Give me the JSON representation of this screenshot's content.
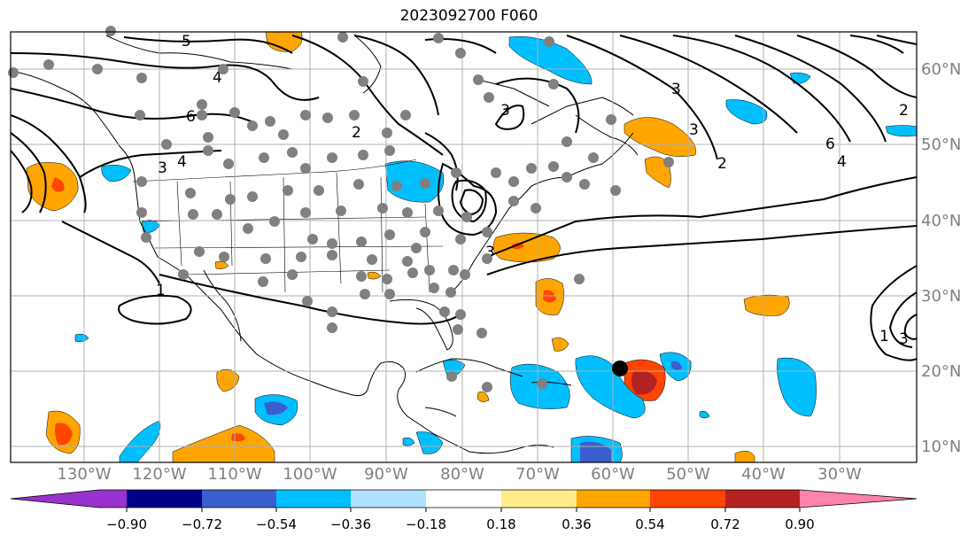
{
  "title": "2023092700 F060",
  "lat_labels": [
    "60°N",
    "50°N",
    "40°N",
    "30°N",
    "20°N",
    "10°N"
  ],
  "lon_labels": [
    "130°W",
    "120°W",
    "110°W",
    "100°W",
    "90°W",
    "80°W",
    "70°W",
    "60°W",
    "50°W",
    "40°W",
    "30°W"
  ],
  "contour_labels": [
    "5",
    "4",
    "6",
    "2",
    "3",
    "3",
    "4",
    "3",
    "1",
    "2",
    "3",
    "6",
    "4",
    "3",
    "2",
    "1",
    "3"
  ],
  "colorbar": {
    "ticks": [
      "−0.90",
      "−0.72",
      "−0.54",
      "−0.36",
      "−0.18",
      "0.18",
      "0.36",
      "0.54",
      "0.72",
      "0.90"
    ],
    "colors": [
      "#9932cc",
      "#00008b",
      "#3a5fcd",
      "#00bfff",
      "#b0e2ff",
      "#ffffff",
      "#ffec8b",
      "#ffa500",
      "#ff4500",
      "#b22222",
      "#ff82ab"
    ],
    "extend": "both"
  },
  "colors": {
    "station_marker": "#808080",
    "storm_marker": "#000000",
    "coastline": "#000000",
    "grid": "#b0b0b0"
  }
}
